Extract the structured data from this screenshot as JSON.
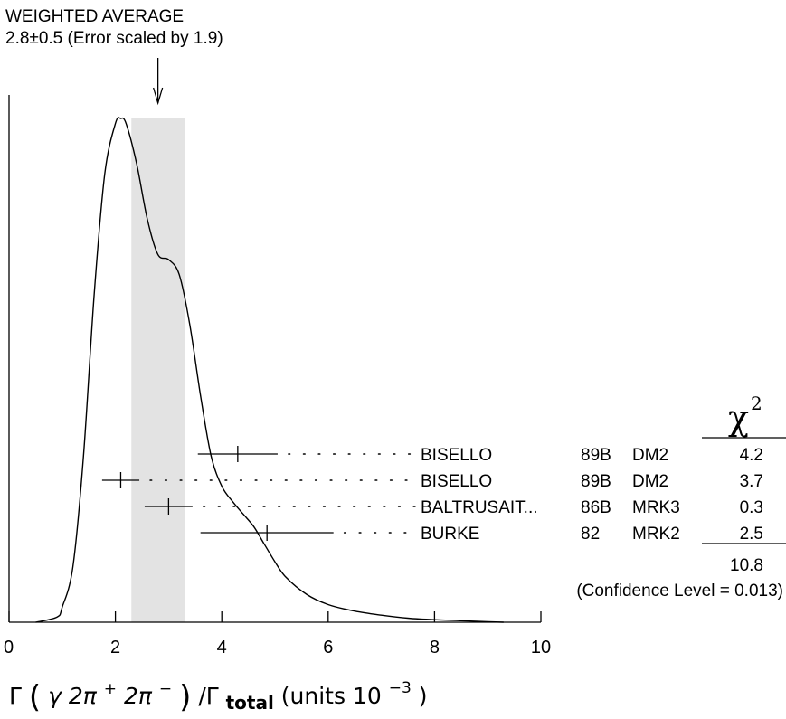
{
  "chart_data": {
    "type": "ideogram",
    "title_line1": "WEIGHTED AVERAGE",
    "title_line2": "2.8±0.5 (Error scaled by 1.9)",
    "average": {
      "value": 2.8,
      "error": 0.5,
      "scale_factor": 1.9
    },
    "xlim": [
      0,
      10
    ],
    "x_ticks": [
      0,
      2,
      4,
      6,
      8,
      10
    ],
    "x_tick_labels": [
      "0",
      "2",
      "4",
      "6",
      "8",
      "10"
    ],
    "xlabel": {
      "gamma": "Γ",
      "inner_pre": "γ 2π",
      "sup1": "+",
      "inner_mid": " 2π",
      "sup2": "−",
      "slash": "/Γ",
      "sub": "total",
      "units_pre": " (units 10",
      "units_sup": "−3",
      "units_post": ")"
    },
    "chi2_header": "χ",
    "chi2_header_sup": "2",
    "measurements": [
      {
        "author": "BISELLO",
        "year": "89B",
        "experiment": "DM2",
        "value": 4.3,
        "error": 0.75,
        "chi2": "4.2"
      },
      {
        "author": "BISELLO",
        "year": "89B",
        "experiment": "DM2",
        "value": 2.1,
        "error": 0.35,
        "chi2": "3.7"
      },
      {
        "author": "BALTRUSAIT...",
        "year": "86B",
        "experiment": "MRK3",
        "value": 3.0,
        "error": 0.45,
        "chi2": "0.3"
      },
      {
        "author": "BURKE",
        "year": "82",
        "experiment": "MRK2",
        "value": 4.85,
        "error": 1.25,
        "chi2": "2.5"
      }
    ],
    "chi2_total": "10.8",
    "confidence_level_text": "(Confidence Level = 0.013)",
    "ideogram_curve": [
      [
        0.5,
        0.0
      ],
      [
        0.9,
        0.01
      ],
      [
        1.0,
        0.03
      ],
      [
        1.2,
        0.11
      ],
      [
        1.4,
        0.33
      ],
      [
        1.6,
        0.65
      ],
      [
        1.8,
        0.89
      ],
      [
        2.0,
        0.99
      ],
      [
        2.1,
        1.0
      ],
      [
        2.2,
        0.99
      ],
      [
        2.4,
        0.91
      ],
      [
        2.6,
        0.8
      ],
      [
        2.8,
        0.73
      ],
      [
        3.0,
        0.72
      ],
      [
        3.2,
        0.69
      ],
      [
        3.4,
        0.59
      ],
      [
        3.6,
        0.45
      ],
      [
        3.8,
        0.33
      ],
      [
        4.0,
        0.27
      ],
      [
        4.2,
        0.24
      ],
      [
        4.4,
        0.215
      ],
      [
        4.6,
        0.19
      ],
      [
        4.8,
        0.155
      ],
      [
        5.0,
        0.12
      ],
      [
        5.2,
        0.09
      ],
      [
        5.6,
        0.055
      ],
      [
        6.0,
        0.035
      ],
      [
        6.5,
        0.022
      ],
      [
        7.0,
        0.014
      ],
      [
        7.5,
        0.008
      ],
      [
        8.0,
        0.005
      ],
      [
        8.5,
        0.003
      ],
      [
        9.0,
        0.001
      ],
      [
        9.3,
        0.0
      ]
    ],
    "band_color": "#e3e3e3",
    "line_color": "#000000"
  }
}
